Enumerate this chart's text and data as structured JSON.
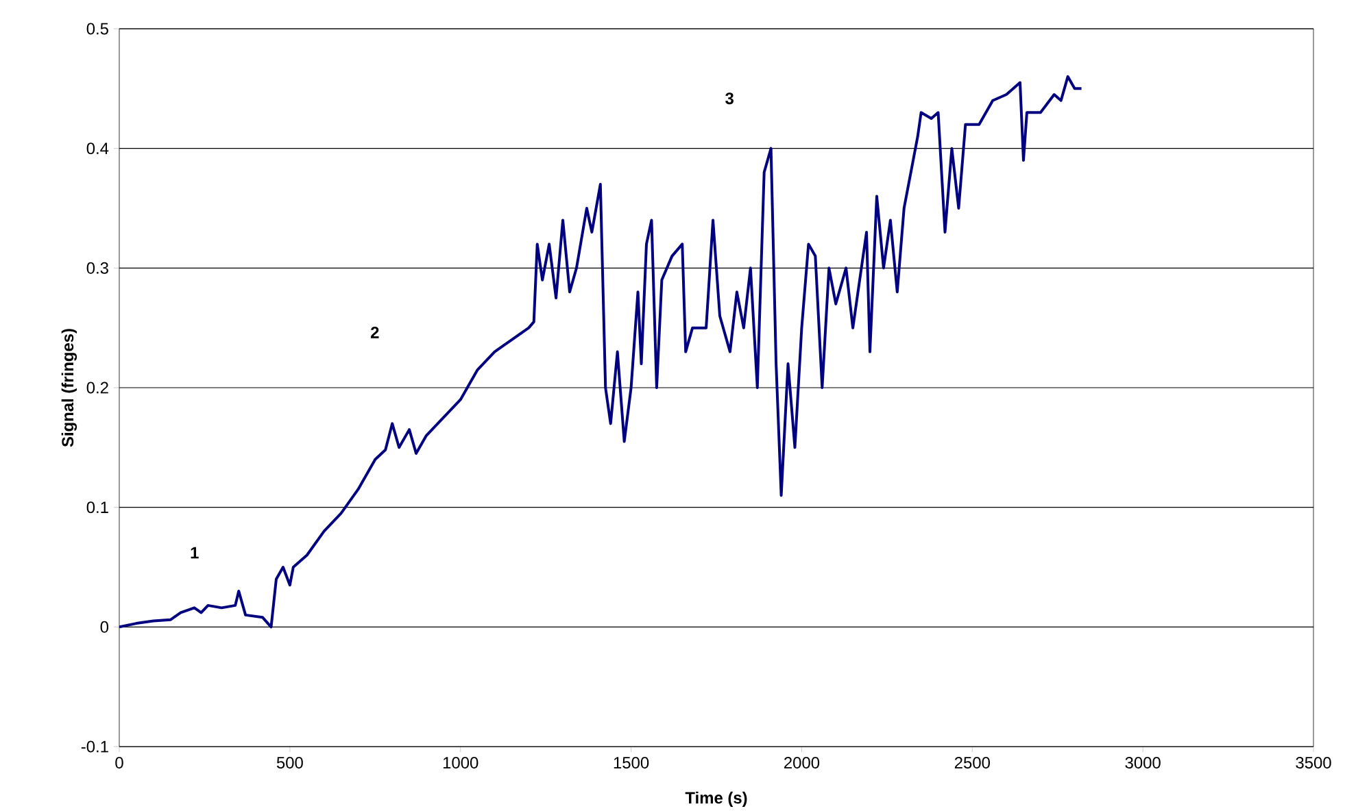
{
  "chart_data": {
    "type": "line",
    "xlabel": "Time (s)",
    "ylabel": "Signal (fringes)",
    "xlim": [
      0,
      3500
    ],
    "xticks": [
      0,
      500,
      1000,
      1500,
      2000,
      2500,
      3000,
      3500
    ],
    "ylim": [
      -0.1,
      0.5
    ],
    "yticks": [
      -0.1,
      0,
      0.1,
      0.2,
      0.3,
      0.4,
      0.5
    ],
    "grid": "y",
    "marker": "none",
    "line_style": "solid",
    "annotations": [
      "1",
      "2",
      "3"
    ],
    "series": [
      {
        "color": "#000080",
        "x": [
          0,
          50,
          100,
          150,
          180,
          220,
          240,
          260,
          300,
          340,
          350,
          370,
          420,
          445,
          460,
          480,
          500,
          510,
          550,
          600,
          650,
          700,
          750,
          780,
          800,
          820,
          850,
          870,
          900,
          950,
          1000,
          1050,
          1100,
          1150,
          1200,
          1215,
          1225,
          1240,
          1260,
          1280,
          1300,
          1320,
          1340,
          1370,
          1385,
          1410,
          1425,
          1440,
          1460,
          1480,
          1500,
          1520,
          1530,
          1545,
          1560,
          1575,
          1590,
          1620,
          1650,
          1660,
          1680,
          1720,
          1740,
          1760,
          1790,
          1810,
          1830,
          1850,
          1870,
          1890,
          1910,
          1925,
          1940,
          1960,
          1980,
          2000,
          2020,
          2040,
          2060,
          2080,
          2100,
          2130,
          2150,
          2170,
          2190,
          2200,
          2220,
          2240,
          2260,
          2280,
          2300,
          2320,
          2340,
          2350,
          2380,
          2400,
          2420,
          2440,
          2460,
          2480,
          2520,
          2560,
          2600,
          2640,
          2650,
          2660,
          2700,
          2740,
          2760,
          2780,
          2800,
          2820
        ],
        "values": [
          0.0,
          0.003,
          0.005,
          0.006,
          0.012,
          0.016,
          0.012,
          0.018,
          0.016,
          0.018,
          0.03,
          0.01,
          0.008,
          0.0,
          0.04,
          0.05,
          0.035,
          0.05,
          0.06,
          0.08,
          0.095,
          0.115,
          0.14,
          0.148,
          0.17,
          0.15,
          0.165,
          0.145,
          0.16,
          0.175,
          0.19,
          0.215,
          0.23,
          0.24,
          0.25,
          0.255,
          0.32,
          0.29,
          0.32,
          0.275,
          0.34,
          0.28,
          0.3,
          0.35,
          0.33,
          0.37,
          0.2,
          0.17,
          0.23,
          0.155,
          0.2,
          0.28,
          0.22,
          0.32,
          0.34,
          0.2,
          0.29,
          0.31,
          0.32,
          0.23,
          0.25,
          0.25,
          0.34,
          0.26,
          0.23,
          0.28,
          0.25,
          0.3,
          0.2,
          0.38,
          0.4,
          0.22,
          0.11,
          0.22,
          0.15,
          0.25,
          0.32,
          0.31,
          0.2,
          0.3,
          0.27,
          0.3,
          0.25,
          0.29,
          0.33,
          0.23,
          0.36,
          0.3,
          0.34,
          0.28,
          0.35,
          0.38,
          0.41,
          0.43,
          0.425,
          0.43,
          0.33,
          0.4,
          0.35,
          0.42,
          0.42,
          0.44,
          0.445,
          0.455,
          0.39,
          0.43,
          0.43,
          0.445,
          0.44,
          0.46,
          0.45,
          0.45
        ]
      }
    ]
  }
}
